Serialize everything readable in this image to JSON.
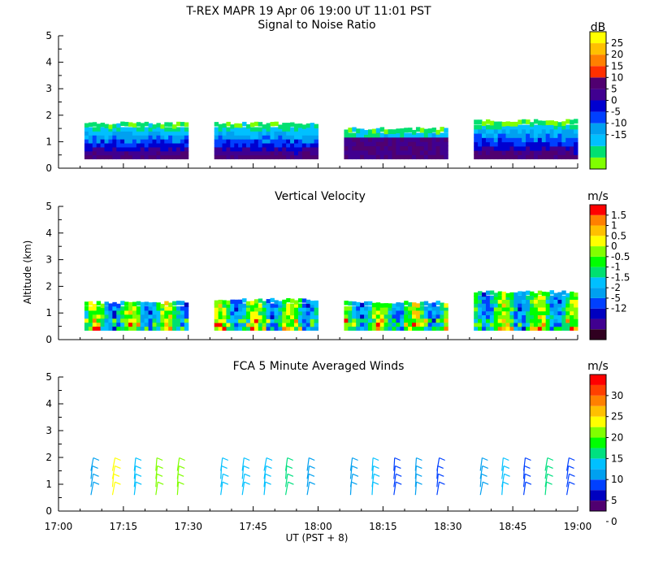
{
  "title": "T-REX  MAPR 19 Apr 06  19:00 UT  11:01  PST",
  "xaxis": {
    "label": "UT  (PST + 8)",
    "ticks": [
      "17:00",
      "17:15",
      "17:30",
      "17:45",
      "18:00",
      "18:15",
      "18:30",
      "18:45",
      "19:00"
    ],
    "range_hours": [
      17.0,
      19.0
    ]
  },
  "yaxis": {
    "label": "Altitude (km)",
    "ticks": [
      "0",
      "1",
      "2",
      "3",
      "4",
      "5"
    ],
    "range_km": [
      0,
      5
    ]
  },
  "colors": {
    "pal12": [
      "#80ff00",
      "#00e070",
      "#00c0ff",
      "#00a0f0",
      "#0040ff",
      "#0000d0",
      "#400090",
      "#500070",
      "#ff3000",
      "#ff8000",
      "#ffc000",
      "#ffff00"
    ],
    "vv13": [
      "#300020",
      "#400090",
      "#0000c0",
      "#0040ff",
      "#00a0f0",
      "#00c0ff",
      "#00e070",
      "#00ff00",
      "#80ff00",
      "#ffff00",
      "#ffc000",
      "#ff8000",
      "#ff0000"
    ],
    "wind13": [
      "#500070",
      "#0000c0",
      "#0040ff",
      "#00a0f0",
      "#00c0ff",
      "#00e080",
      "#00ff00",
      "#80ff00",
      "#ffff00",
      "#ffc000",
      "#ff8000",
      "#ff4000",
      "#ff0000"
    ]
  },
  "chart_data": [
    {
      "type": "heatmap",
      "title": "Signal to Noise Ratio",
      "unit": "dB",
      "colorbar_labels": [
        "25",
        "20",
        "15",
        "10",
        "5",
        "0",
        "-5",
        "-10",
        "-15"
      ],
      "x_range_hours": [
        17.0,
        19.0
      ],
      "y_range_km": [
        0,
        5
      ],
      "segments_hours": [
        [
          17.1,
          17.5
        ],
        [
          17.6,
          18.0
        ],
        [
          18.1,
          18.5
        ],
        [
          18.6,
          19.0
        ]
      ],
      "echo_top_km": [
        1.7,
        1.7,
        1.5,
        1.8
      ],
      "data_bottom_km": 0.35
    },
    {
      "type": "heatmap",
      "title": "Vertical Velocity",
      "unit": "m/s",
      "colorbar_labels": [
        "1.5",
        "1",
        "0.5",
        "0",
        "-0.5",
        "-1",
        "-1.5",
        "-2",
        "-5",
        "-12"
      ],
      "x_range_hours": [
        17.0,
        19.0
      ],
      "y_range_km": [
        0,
        5
      ],
      "segments_hours": [
        [
          17.1,
          17.5
        ],
        [
          17.6,
          18.0
        ],
        [
          18.1,
          18.5
        ],
        [
          18.6,
          19.0
        ]
      ],
      "echo_top_km": [
        1.4,
        1.5,
        1.4,
        1.8
      ],
      "data_bottom_km": 0.35
    },
    {
      "type": "barbs",
      "title": "FCA 5 Minute Averaged Winds",
      "unit": "m/s",
      "colorbar_labels": [
        "30",
        "25",
        "20",
        "15",
        "10",
        "5",
        "0"
      ],
      "x_range_hours": [
        17.0,
        19.0
      ],
      "y_range_km": [
        0,
        5
      ],
      "barb_times_hours": [
        17.125,
        17.208,
        17.292,
        17.375,
        17.458,
        17.625,
        17.708,
        17.792,
        17.875,
        17.958,
        18.125,
        18.208,
        18.292,
        18.375,
        18.458,
        18.625,
        18.708,
        18.792,
        18.875,
        18.958
      ],
      "barb_altitudes_km": [
        0.6,
        0.9,
        1.2,
        1.5
      ],
      "barb_speeds_ms": [
        8,
        20,
        10,
        17,
        18,
        10,
        11,
        9,
        13,
        8,
        7,
        10,
        6,
        7,
        5,
        8,
        10,
        4,
        12,
        4
      ]
    }
  ]
}
